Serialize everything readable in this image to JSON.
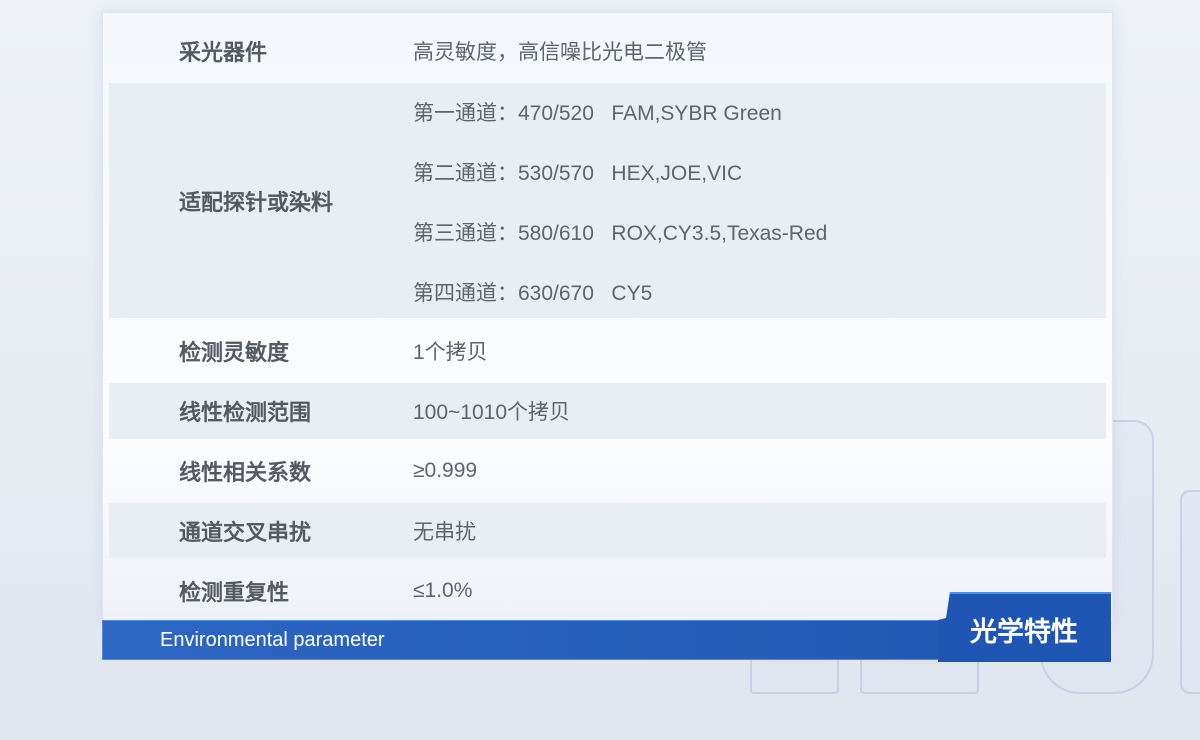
{
  "table": {
    "rows": [
      {
        "label": "采光器件",
        "values": [
          "高灵敏度，高信噪比光电二极管"
        ]
      },
      {
        "label": "适配探针或染料",
        "values": [
          "第一通道：470/520   FAM,SYBR Green",
          "第二通道：530/570   HEX,JOE,VIC",
          "第三通道：580/610   ROX,CY3.5,Texas-Red",
          "第四通道：630/670   CY5"
        ]
      },
      {
        "label": "检测灵敏度",
        "values": [
          "1个拷贝"
        ]
      },
      {
        "label": "线性检测范围",
        "values": [
          "100~1010个拷贝"
        ]
      },
      {
        "label": "线性相关系数",
        "values": [
          "≥0.999"
        ]
      },
      {
        "label": "通道交叉串扰",
        "values": [
          "无串扰"
        ]
      },
      {
        "label": "检测重复性",
        "values": [
          "≤1.0%"
        ]
      }
    ]
  },
  "footer": {
    "subtitle": "Environmental parameter",
    "section_title": "光学特性"
  },
  "colors": {
    "accent": "#1f56b4",
    "row_shade": "#e9eef5",
    "text": "#555a62"
  }
}
